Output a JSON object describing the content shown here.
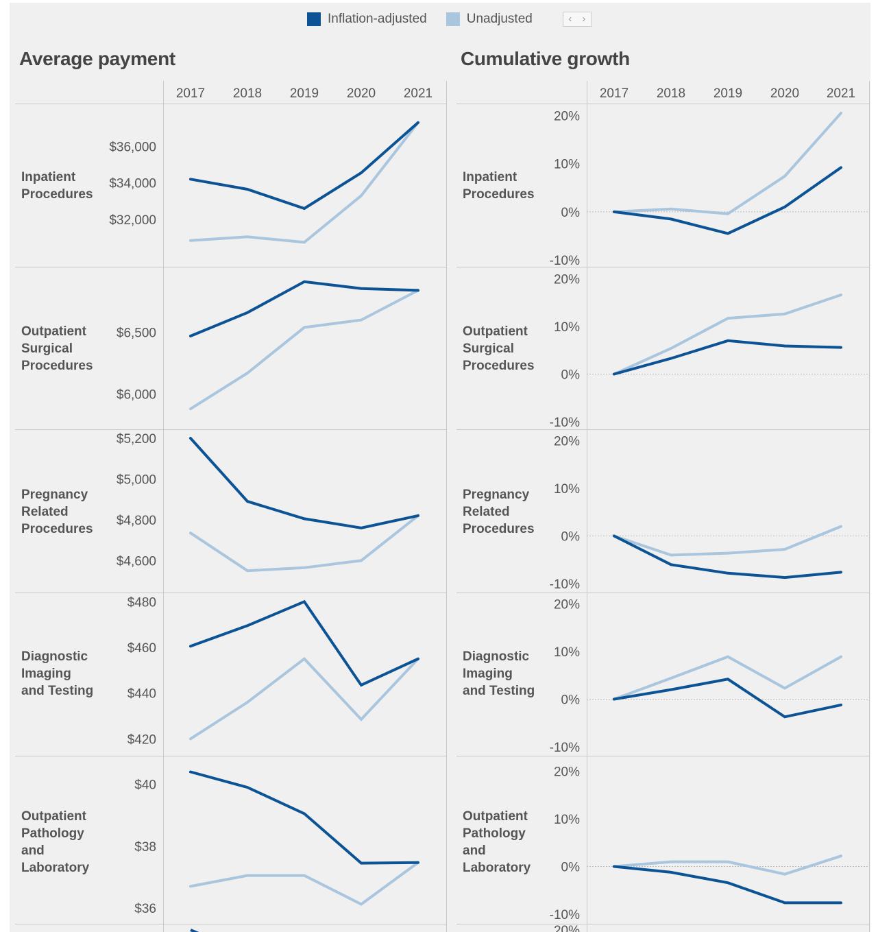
{
  "legend": {
    "items": [
      {
        "label": "Inflation-adjusted",
        "color": "#0b5394"
      },
      {
        "label": "Unadjusted",
        "color": "#a9c6de"
      }
    ],
    "prev_icon": "chevron-left-icon",
    "next_icon": "chevron-right-icon"
  },
  "panels": {
    "left_title": "Average payment",
    "right_title": "Cumulative growth"
  },
  "colors": {
    "adjusted": "#0b5394",
    "unadjusted": "#a9c6de",
    "grid": "#c8c8c8",
    "zero_line": "#bbbbbb"
  },
  "chart_data": [
    {
      "type": "line",
      "panel": "Average payment",
      "row": "Inpatient Procedures",
      "categories": [
        "2017",
        "2018",
        "2019",
        "2020",
        "2021"
      ],
      "series": [
        {
          "name": "Inflation-adjusted",
          "values": [
            34200,
            33650,
            32600,
            34550,
            37300
          ]
        },
        {
          "name": "Unadjusted",
          "values": [
            30850,
            31050,
            30750,
            33300,
            37300
          ]
        }
      ],
      "yticks": [
        32000,
        34000,
        36000
      ],
      "ytick_labels": [
        "$32,000",
        "$34,000",
        "$36,000"
      ],
      "ylim": [
        29600,
        38000
      ]
    },
    {
      "type": "line",
      "panel": "Average payment",
      "row": "Outpatient Surgical Procedures",
      "categories": [
        "2017",
        "2018",
        "2019",
        "2020",
        "2021"
      ],
      "series": [
        {
          "name": "Inflation-adjusted",
          "values": [
            6470,
            6660,
            6910,
            6855,
            6840
          ]
        },
        {
          "name": "Unadjusted",
          "values": [
            5880,
            6170,
            6540,
            6600,
            6840
          ]
        }
      ],
      "yticks": [
        6000,
        6500
      ],
      "ytick_labels": [
        "$6,000",
        "$6,500"
      ],
      "ylim": [
        5770,
        6970
      ]
    },
    {
      "type": "line",
      "panel": "Average payment",
      "row": "Pregnancy Related Procedures",
      "categories": [
        "2017",
        "2018",
        "2019",
        "2020",
        "2021"
      ],
      "series": [
        {
          "name": "Inflation-adjusted",
          "values": [
            5200,
            4890,
            4805,
            4760,
            4820
          ]
        },
        {
          "name": "Unadjusted",
          "values": [
            4735,
            4550,
            4565,
            4600,
            4820
          ]
        }
      ],
      "yticks": [
        4600,
        4800,
        5000,
        5200
      ],
      "ytick_labels": [
        "$4,600",
        "$4,800",
        "$5,000",
        "$5,200"
      ],
      "ylim": [
        4470,
        5210
      ]
    },
    {
      "type": "line",
      "panel": "Average payment",
      "row": "Diagnostic Imaging and Testing",
      "categories": [
        "2017",
        "2018",
        "2019",
        "2020",
        "2021"
      ],
      "series": [
        {
          "name": "Inflation-adjusted",
          "values": [
            460.5,
            469.5,
            480,
            443.5,
            455
          ]
        },
        {
          "name": "Unadjusted",
          "values": [
            420,
            436,
            455,
            428.5,
            455
          ]
        }
      ],
      "yticks": [
        420,
        440,
        460,
        480
      ],
      "ytick_labels": [
        "$420",
        "$440",
        "$460",
        "$480"
      ],
      "ylim": [
        415,
        481
      ]
    },
    {
      "type": "line",
      "panel": "Average payment",
      "row": "Outpatient Pathology and Laboratory",
      "categories": [
        "2017",
        "2018",
        "2019",
        "2020",
        "2021"
      ],
      "series": [
        {
          "name": "Inflation-adjusted",
          "values": [
            40.4,
            39.9,
            39.05,
            37.45,
            37.47
          ]
        },
        {
          "name": "Unadjusted",
          "values": [
            36.7,
            37.05,
            37.05,
            36.12,
            37.47
          ]
        }
      ],
      "yticks": [
        36,
        38,
        40
      ],
      "ytick_labels": [
        "$36",
        "$38",
        "$40"
      ],
      "ylim": [
        35.6,
        40.7
      ]
    },
    {
      "type": "line",
      "panel": "Cumulative growth",
      "row": "Inpatient Procedures",
      "categories": [
        "2017",
        "2018",
        "2019",
        "2020",
        "2021"
      ],
      "series": [
        {
          "name": "Inflation-adjusted",
          "values": [
            0,
            -1.5,
            -4.5,
            1,
            9.2
          ]
        },
        {
          "name": "Unadjusted",
          "values": [
            0,
            0.6,
            -0.4,
            7.4,
            20.5
          ]
        }
      ],
      "yticks": [
        -10,
        0,
        10,
        20
      ],
      "ytick_labels": [
        "-10%",
        "0%",
        "10%",
        "20%"
      ],
      "ylim": [
        -10.7,
        21.2
      ]
    },
    {
      "type": "line",
      "panel": "Cumulative growth",
      "row": "Outpatient Surgical Procedures",
      "categories": [
        "2017",
        "2018",
        "2019",
        "2020",
        "2021"
      ],
      "series": [
        {
          "name": "Inflation-adjusted",
          "values": [
            0,
            3.3,
            7,
            5.9,
            5.6
          ]
        },
        {
          "name": "Unadjusted",
          "values": [
            0,
            5.4,
            11.7,
            12.6,
            16.6
          ]
        }
      ],
      "yticks": [
        -10,
        0,
        10,
        20
      ],
      "ytick_labels": [
        "-10%",
        "0%",
        "10%",
        "20%"
      ],
      "ylim": [
        -10.7,
        21.2
      ]
    },
    {
      "type": "line",
      "panel": "Cumulative growth",
      "row": "Pregnancy Related Procedures",
      "categories": [
        "2017",
        "2018",
        "2019",
        "2020",
        "2021"
      ],
      "series": [
        {
          "name": "Inflation-adjusted",
          "values": [
            0,
            -6,
            -7.8,
            -8.7,
            -7.6
          ]
        },
        {
          "name": "Unadjusted",
          "values": [
            0,
            -4,
            -3.6,
            -2.8,
            2
          ]
        }
      ],
      "yticks": [
        -10,
        0,
        10,
        20
      ],
      "ytick_labels": [
        "-10%",
        "0%",
        "10%",
        "20%"
      ],
      "ylim": [
        -10.7,
        21.2
      ]
    },
    {
      "type": "line",
      "panel": "Cumulative growth",
      "row": "Diagnostic Imaging and Testing",
      "categories": [
        "2017",
        "2018",
        "2019",
        "2020",
        "2021"
      ],
      "series": [
        {
          "name": "Inflation-adjusted",
          "values": [
            0,
            2,
            4.2,
            -3.7,
            -1.2
          ]
        },
        {
          "name": "Unadjusted",
          "values": [
            0,
            4.4,
            8.9,
            2.3,
            8.9
          ]
        }
      ],
      "yticks": [
        -10,
        0,
        10,
        20
      ],
      "ytick_labels": [
        "-10%",
        "0%",
        "10%",
        "20%"
      ],
      "ylim": [
        -10.7,
        21.2
      ]
    },
    {
      "type": "line",
      "panel": "Cumulative growth",
      "row": "Outpatient Pathology and Laboratory",
      "categories": [
        "2017",
        "2018",
        "2019",
        "2020",
        "2021"
      ],
      "series": [
        {
          "name": "Inflation-adjusted",
          "values": [
            0,
            -1.2,
            -3.4,
            -7.6,
            -7.6
          ]
        },
        {
          "name": "Unadjusted",
          "values": [
            0,
            1,
            1,
            -1.6,
            2.2
          ]
        }
      ],
      "yticks": [
        -10,
        0,
        10,
        20
      ],
      "ytick_labels": [
        "-10%",
        "0%",
        "10%",
        "20%"
      ],
      "ylim": [
        -10.7,
        21.2
      ]
    }
  ],
  "row_labels": [
    "Inpatient\nProcedures",
    "Outpatient\nSurgical\nProcedures",
    "Pregnancy\nRelated\nProcedures",
    "Diagnostic\nImaging\nand Testing",
    "Outpatient\nPathology\nand\nLaboratory"
  ]
}
